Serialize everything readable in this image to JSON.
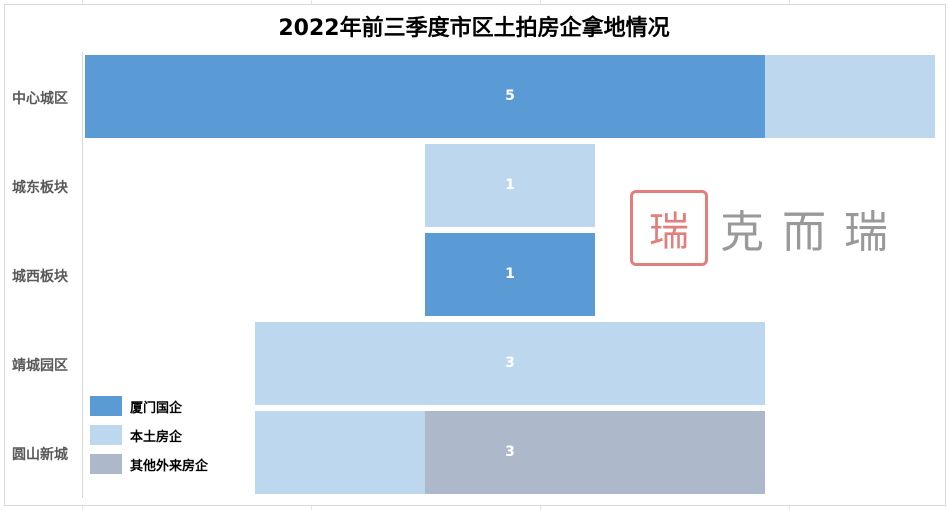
{
  "chart_data": {
    "type": "bar",
    "orientation": "horizontal",
    "stacked": true,
    "centered": true,
    "title": "2022年前三季度市区土拍房企拿地情况",
    "categories": [
      "中心城区",
      "城东板块",
      "城西板块",
      "靖城园区",
      "圆山新城"
    ],
    "series": [
      {
        "name": "厦门国企",
        "color": "#5b9bd5",
        "values": [
          4,
          0,
          1,
          0,
          0
        ]
      },
      {
        "name": "本土房企",
        "color": "#bdd7ee",
        "values": [
          1,
          1,
          0,
          3,
          1
        ]
      },
      {
        "name": "其他外来房企",
        "color": "#adb9ca",
        "values": [
          0,
          0,
          0,
          0,
          2
        ]
      }
    ],
    "data_labels": [
      "5",
      "1",
      "1",
      "3",
      "3"
    ],
    "legend_position": "bottom-left",
    "grid": false
  },
  "watermark": {
    "text": "克而瑞"
  }
}
